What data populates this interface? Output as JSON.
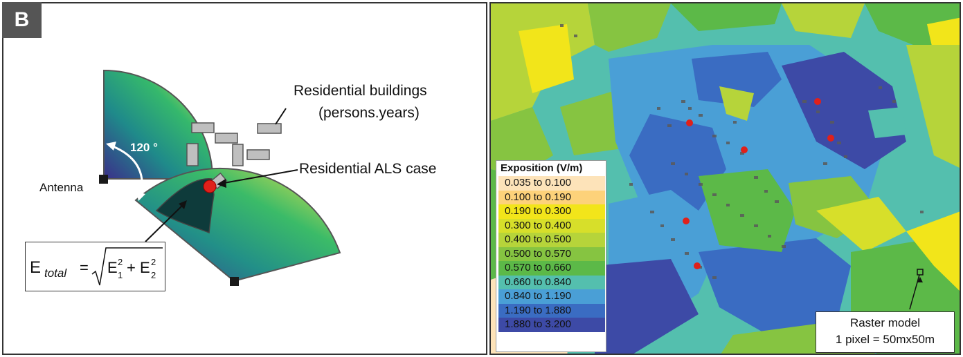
{
  "panel_badge": "B",
  "left": {
    "label_buildings_line1": "Residential buildings",
    "label_buildings_line2": "(persons.years)",
    "label_case": "Residential ALS case",
    "label_antenna": "Antenna",
    "label_angle": "120 °",
    "formula": {
      "e": "E",
      "sub_total": "total",
      "equals": "=",
      "e1": "E",
      "sub1": "1",
      "sup1": "2",
      "plus": "+",
      "e2": "E",
      "sub2": "2",
      "sup2": "2"
    }
  },
  "legend": {
    "title": "Exposition (V/m)",
    "items": [
      {
        "label": "0.035 to 0.100",
        "color": "#fde3b9"
      },
      {
        "label": "0.100 to 0.190",
        "color": "#fdd27a"
      },
      {
        "label": "0.190 to 0.300",
        "color": "#f2e51a"
      },
      {
        "label": "0.300 to 0.400",
        "color": "#d7df2a"
      },
      {
        "label": "0.400 to 0.500",
        "color": "#b6d43a"
      },
      {
        "label": "0.500 to 0.570",
        "color": "#86c441"
      },
      {
        "label": "0.570 to 0.660",
        "color": "#5cb948"
      },
      {
        "label": "0.660 to 0.840",
        "color": "#54bfae"
      },
      {
        "label": "0.840 to 1.190",
        "color": "#4a9fd6"
      },
      {
        "label": "1.190 to 1.880",
        "color": "#3a6cc2"
      },
      {
        "label": "1.880 to 3.200",
        "color": "#3d4aa6"
      }
    ]
  },
  "raster_label_line1": "Raster model",
  "raster_label_line2": "1 pixel = 50mx50m"
}
